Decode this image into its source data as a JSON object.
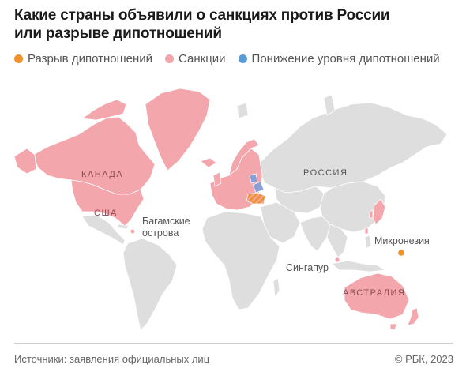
{
  "header": {
    "title_line1": "Какие страны объявили о санкциях против России",
    "title_line2": "или разрыве дипотношений"
  },
  "legend": {
    "items": [
      {
        "label": "Разрыв дипотношений",
        "color": "#f0932b"
      },
      {
        "label": "Санкции",
        "color": "#f4a6ad"
      },
      {
        "label": "Понижение уровня дипотношений",
        "color": "#5b9bd5"
      }
    ]
  },
  "map": {
    "colors": {
      "land": "#dedede",
      "sanction": "#f4a6ad",
      "break": "#f0932b",
      "downgrade": "#8aa0d8",
      "border": "#ffffff"
    },
    "labels": {
      "canada": "КАНАДА",
      "usa": "США",
      "russia": "РОССИЯ",
      "australia": "АВСТРАЛИЯ",
      "bahamas_line1": "Багамские",
      "bahamas_line2": "острова",
      "micronesia": "Микронезия",
      "singapore": "Сингапур"
    }
  },
  "footer": {
    "source": "Источники: заявления официальных лиц",
    "copyright": "© РБК, 2023"
  }
}
